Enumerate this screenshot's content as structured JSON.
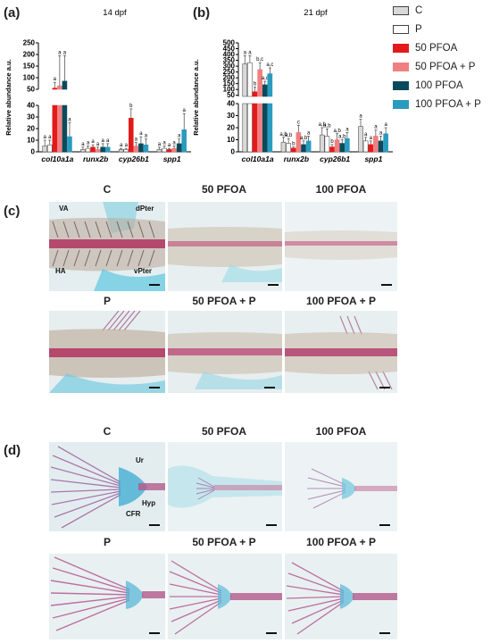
{
  "panel_labels": {
    "a": "(a)",
    "b": "(b)",
    "c": "(c)",
    "d": "(d)"
  },
  "legend": {
    "items": [
      {
        "label": "C",
        "color": "#d9d9d9"
      },
      {
        "label": "P",
        "color": "#ffffff"
      },
      {
        "label": "50 PFOA",
        "color": "#e31a1c"
      },
      {
        "label": "50 PFOA + P",
        "color": "#f08080"
      },
      {
        "label": "100 PFOA",
        "color": "#0b4a5c"
      },
      {
        "label": "100 PFOA + P",
        "color": "#2a9bbf"
      }
    ]
  },
  "chart_data": [
    {
      "type": "bar",
      "title": "14 dpf",
      "ylabel": "Relative abundance a.u.",
      "categories": [
        "col10a1a",
        "runx2b",
        "cyp26b1",
        "spp1"
      ],
      "broken_axis": {
        "lower": [
          0,
          40
        ],
        "upper": [
          50,
          250
        ]
      },
      "y_ticks_lower": [
        "0",
        "10",
        "20",
        "30",
        "40"
      ],
      "y_ticks_upper": [
        "50",
        "100",
        "150",
        "200",
        "250"
      ],
      "series": [
        {
          "name": "C",
          "values": [
            5,
            2,
            2,
            2
          ],
          "errors": [
            5,
            2,
            1,
            2
          ],
          "letters": [
            "a",
            "a",
            "a",
            "a"
          ]
        },
        {
          "name": "P",
          "values": [
            6,
            3,
            2,
            3
          ],
          "errors": [
            4,
            2,
            1,
            2
          ],
          "letters": [
            "a",
            "a",
            "a",
            "a"
          ]
        },
        {
          "name": "50 PFOA",
          "values": [
            55,
            4,
            29,
            2
          ],
          "errors": [
            25,
            2,
            8,
            1
          ],
          "letters": [
            "a",
            "a",
            "b",
            "a"
          ]
        },
        {
          "name": "50 PFOA + P",
          "values": [
            65,
            2,
            5,
            3
          ],
          "errors": [
            130,
            2,
            3,
            2
          ],
          "letters": [
            "a",
            "a",
            "a",
            "a"
          ]
        },
        {
          "name": "100 PFOA",
          "values": [
            85,
            4,
            7,
            7
          ],
          "errors": [
            110,
            3,
            6,
            4
          ],
          "letters": [
            "a",
            "a",
            "a",
            "a"
          ]
        },
        {
          "name": "100 PFOA + P",
          "values": [
            13,
            4,
            6,
            19
          ],
          "errors": [
            12,
            3,
            5,
            14
          ],
          "letters": [
            "a",
            "a",
            "a",
            "a"
          ]
        }
      ]
    },
    {
      "type": "bar",
      "title": "21 dpf",
      "ylabel": "Relative abundance a.u.",
      "categories": [
        "col10a1a",
        "runx2b",
        "cyp26b1",
        "spp1"
      ],
      "broken_axis": {
        "lower": [
          0,
          40
        ],
        "upper": [
          40,
          500
        ]
      },
      "y_ticks_lower": [
        "0",
        "10",
        "20",
        "30",
        "40"
      ],
      "y_ticks_upper": [
        "50",
        "100",
        "150",
        "200",
        "250",
        "300",
        "350",
        "400",
        "450",
        "500"
      ],
      "series": [
        {
          "name": "C",
          "values": [
            320,
            8,
            14,
            21
          ],
          "errors": [
            70,
            4,
            6,
            6
          ],
          "letters": [
            "a",
            "a,b",
            "a,b",
            "a"
          ]
        },
        {
          "name": "P",
          "values": [
            330,
            7,
            13,
            9
          ],
          "errors": [
            60,
            4,
            6,
            3
          ],
          "letters": [
            "a",
            "a,b",
            "a,b",
            "a"
          ]
        },
        {
          "name": "50 PFOA",
          "values": [
            80,
            3,
            4,
            6
          ],
          "errors": [
            40,
            1,
            2,
            3
          ],
          "letters": [
            "b",
            "b",
            "b",
            "a"
          ]
        },
        {
          "name": "50 PFOA + P",
          "values": [
            270,
            16,
            10,
            13
          ],
          "errors": [
            60,
            6,
            5,
            5
          ],
          "letters": [
            "b,c",
            "c",
            "a,b",
            "a"
          ]
        },
        {
          "name": "100 PFOA",
          "values": [
            140,
            6,
            7,
            9
          ],
          "errors": [
            30,
            3,
            3,
            4
          ],
          "letters": [
            "a,c",
            "a,b",
            "a,b",
            "a"
          ]
        },
        {
          "name": "100 PFOA + P",
          "values": [
            235,
            9,
            11,
            15
          ],
          "errors": [
            50,
            4,
            5,
            5
          ],
          "letters": [
            "a,c",
            "a",
            "a",
            "a"
          ]
        }
      ]
    }
  ],
  "panel_c": {
    "row1": [
      "C",
      "50 PFOA",
      "100 PFOA"
    ],
    "row2": [
      "P",
      "50 PFOA + P",
      "100 PFOA + P"
    ],
    "annotations": {
      "va": "VA",
      "dpter": "dPter",
      "ha": "HA",
      "vpter": "vPter"
    }
  },
  "panel_d": {
    "row1": [
      "C",
      "50 PFOA",
      "100 PFOA"
    ],
    "row2": [
      "P",
      "50 PFOA + P",
      "100 PFOA + P"
    ],
    "annotations": {
      "ur": "Ur",
      "hyp": "Hyp",
      "cfr": "CFR"
    }
  }
}
